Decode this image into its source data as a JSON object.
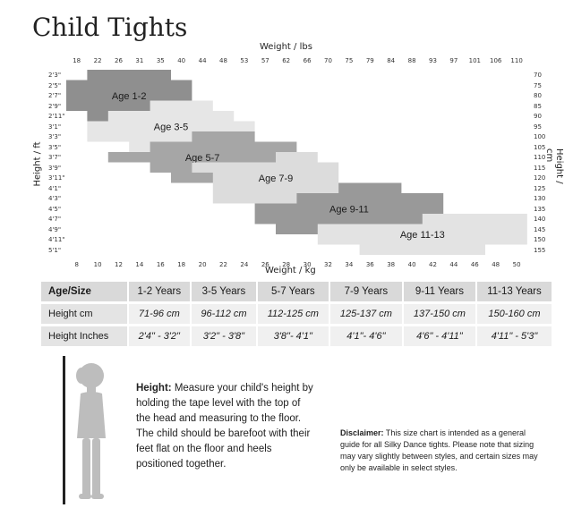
{
  "title": "Child Tights",
  "chart_data": {
    "type": "heatmap",
    "xlabel_top": "Weight / lbs",
    "xlabel_bottom": "Weight / kg",
    "ylabel_left": "Height / ft",
    "ylabel_right": "Height / cm",
    "lbs_ticks": [
      "18",
      "22",
      "26",
      "31",
      "35",
      "40",
      "44",
      "48",
      "53",
      "57",
      "62",
      "66",
      "70",
      "75",
      "79",
      "84",
      "88",
      "93",
      "97",
      "101",
      "106",
      "110"
    ],
    "kg_ticks": [
      "8",
      "10",
      "12",
      "14",
      "16",
      "18",
      "20",
      "22",
      "24",
      "26",
      "28",
      "30",
      "32",
      "34",
      "36",
      "38",
      "40",
      "42",
      "44",
      "46",
      "48",
      "50"
    ],
    "ft_ticks": [
      "2'3\"",
      "2'5\"",
      "2'7\"",
      "2'9\"",
      "2'11\"",
      "3'1\"",
      "3'3\"",
      "3'5\"",
      "3'7\"",
      "3'9\"",
      "3'11\"",
      "4'1\"",
      "4'3\"",
      "4'5\"",
      "4'7\"",
      "4'9\"",
      "4'11\"",
      "5'1\""
    ],
    "cm_ticks": [
      "70",
      "75",
      "80",
      "85",
      "90",
      "95",
      "100",
      "105",
      "110",
      "115",
      "120",
      "125",
      "130",
      "135",
      "140",
      "145",
      "150",
      "155"
    ],
    "sizes": [
      {
        "label": "Age 1-2",
        "color": "#8f8f8f",
        "rows": [
          [
            0,
            1,
            4
          ],
          [
            1,
            0,
            5
          ],
          [
            2,
            0,
            5
          ],
          [
            3,
            0,
            4
          ],
          [
            4,
            1,
            2
          ]
        ]
      },
      {
        "label": "Age 3-5",
        "color": "#e6e6e6",
        "rows": [
          [
            3,
            4,
            6
          ],
          [
            4,
            2,
            7
          ],
          [
            5,
            1,
            8
          ],
          [
            6,
            1,
            8
          ],
          [
            7,
            3,
            8
          ]
        ]
      },
      {
        "label": "Age 5-7",
        "color": "#a6a6a6",
        "rows": [
          [
            6,
            6,
            8
          ],
          [
            7,
            4,
            10
          ],
          [
            8,
            2,
            10
          ],
          [
            9,
            4,
            10
          ],
          [
            10,
            5,
            7
          ]
        ]
      },
      {
        "label": "Age 7-9",
        "color": "#dcdcdc",
        "rows": [
          [
            8,
            10,
            11
          ],
          [
            9,
            6,
            12
          ],
          [
            10,
            7,
            12
          ],
          [
            11,
            7,
            13
          ],
          [
            12,
            7,
            11
          ]
        ]
      },
      {
        "label": "Age 9-11",
        "color": "#999999",
        "rows": [
          [
            11,
            13,
            15
          ],
          [
            12,
            11,
            17
          ],
          [
            13,
            9,
            17
          ],
          [
            14,
            9,
            17
          ],
          [
            15,
            10,
            12
          ]
        ]
      },
      {
        "label": "Age 11-13",
        "color": "#e3e3e3",
        "rows": [
          [
            14,
            17,
            21
          ],
          [
            15,
            12,
            21
          ],
          [
            16,
            12,
            21
          ],
          [
            17,
            14,
            19
          ]
        ]
      }
    ]
  },
  "table": {
    "header": [
      "Age/Size",
      "1-2 Years",
      "3-5 Years",
      "5-7 Years",
      "7-9 Years",
      "9-11 Years",
      "11-13 Years"
    ],
    "rows": [
      [
        "Height cm",
        "71-96 cm",
        "96-112 cm",
        "112-125 cm",
        "125-137 cm",
        "137-150 cm",
        "150-160 cm"
      ],
      [
        "Height Inches",
        "2'4\" - 3'2\"",
        "3'2\" - 3'8\"",
        "3'8\"- 4'1\"",
        "4'1\"- 4'6\"",
        "4'6\" - 4'11\"",
        "4'11\" - 5'3\""
      ]
    ]
  },
  "measure": {
    "label": "Height:",
    "text": "Measure your child's height by holding the tape level with the top of the head and measuring to the floor. The child should be barefoot with their feet flat on the floor and heels positioned together."
  },
  "disclaimer": {
    "label": "Disclaimer:",
    "text": "This size chart is intended as a general guide for all Silky Dance tights. Please note that sizing may vary slightly between styles, and certain sizes may only be available in select styles."
  }
}
